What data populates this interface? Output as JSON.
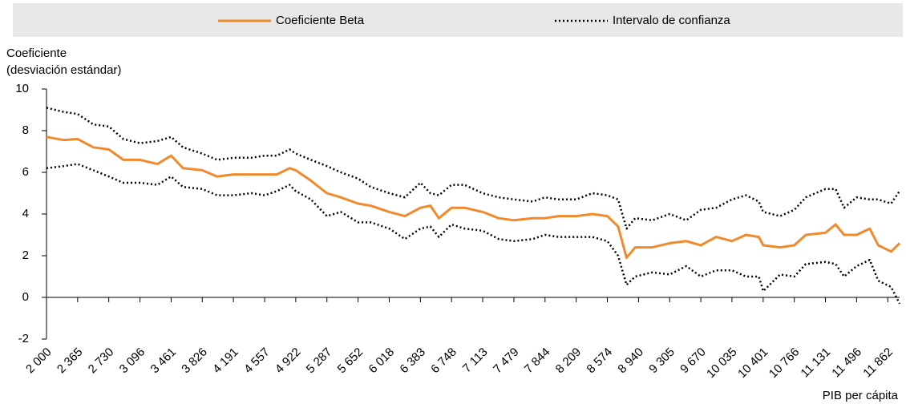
{
  "chart_data": {
    "type": "line",
    "ylabel": [
      "Coeficiente",
      "(desviación estándar)"
    ],
    "xlabel": "PIB per cápita",
    "x": [
      2000,
      2200,
      2365,
      2550,
      2730,
      2900,
      3096,
      3300,
      3461,
      3600,
      3826,
      4000,
      4191,
      4400,
      4557,
      4700,
      4850,
      4922,
      5100,
      5287,
      5450,
      5652,
      5800,
      6018,
      6200,
      6383,
      6500,
      6600,
      6748,
      6900,
      7113,
      7300,
      7479,
      7700,
      7844,
      8000,
      8209,
      8400,
      8574,
      8700,
      8800,
      8900,
      9100,
      9305,
      9500,
      9670,
      9850,
      10035,
      10200,
      10350,
      10401,
      10600,
      10766,
      10900,
      11131,
      11250,
      11350,
      11496,
      11650,
      11750,
      11900,
      12000
    ],
    "series": [
      {
        "name": "Coeficiente Beta",
        "color": "#f08a2c",
        "style": "solid",
        "values": [
          7.7,
          7.55,
          7.6,
          7.2,
          7.1,
          6.6,
          6.6,
          6.4,
          6.8,
          6.2,
          6.1,
          5.8,
          5.9,
          5.9,
          5.9,
          5.9,
          6.2,
          6.1,
          5.6,
          5.0,
          4.8,
          4.5,
          4.4,
          4.1,
          3.9,
          4.3,
          4.4,
          3.8,
          4.3,
          4.3,
          4.1,
          3.8,
          3.7,
          3.8,
          3.8,
          3.9,
          3.9,
          4.0,
          3.9,
          3.4,
          1.9,
          2.4,
          2.4,
          2.6,
          2.7,
          2.5,
          2.9,
          2.7,
          3.0,
          2.9,
          2.5,
          2.4,
          2.5,
          3.0,
          3.1,
          3.5,
          3.0,
          3.0,
          3.3,
          2.5,
          2.2,
          2.6
        ]
      },
      {
        "name": "Intervalo de confianza",
        "color": "#000000",
        "style": "dotted",
        "values": [
          9.1,
          8.9,
          8.8,
          8.3,
          8.2,
          7.6,
          7.4,
          7.5,
          7.7,
          7.2,
          6.9,
          6.6,
          6.7,
          6.7,
          6.8,
          6.8,
          7.1,
          6.9,
          6.6,
          6.3,
          6.0,
          5.7,
          5.3,
          5.0,
          4.8,
          5.5,
          5.0,
          4.9,
          5.4,
          5.4,
          5.0,
          4.8,
          4.7,
          4.6,
          4.8,
          4.7,
          4.7,
          5.0,
          4.9,
          4.7,
          3.3,
          3.8,
          3.7,
          4.0,
          3.7,
          4.2,
          4.3,
          4.7,
          4.9,
          4.6,
          4.1,
          3.9,
          4.2,
          4.8,
          5.2,
          5.2,
          4.3,
          4.8,
          4.7,
          4.7,
          4.5,
          5.1
        ]
      },
      {
        "color": "#000000",
        "style": "dotted",
        "values": [
          6.2,
          6.3,
          6.4,
          6.1,
          5.8,
          5.5,
          5.5,
          5.4,
          5.8,
          5.3,
          5.2,
          4.9,
          4.9,
          5.0,
          4.9,
          5.1,
          5.4,
          5.1,
          4.7,
          3.9,
          4.1,
          3.6,
          3.6,
          3.3,
          2.8,
          3.3,
          3.4,
          2.9,
          3.5,
          3.3,
          3.2,
          2.8,
          2.7,
          2.8,
          3.0,
          2.9,
          2.9,
          2.9,
          2.7,
          2.0,
          0.6,
          1.0,
          1.2,
          1.1,
          1.5,
          1.0,
          1.3,
          1.3,
          1.0,
          1.0,
          0.3,
          1.1,
          1.0,
          1.6,
          1.7,
          1.6,
          1.0,
          1.5,
          1.8,
          0.8,
          0.5,
          -0.3
        ]
      }
    ],
    "xlim": [
      2000,
      12000
    ],
    "xticks": [
      {
        "value": 2000,
        "label": "2 000"
      },
      {
        "value": 2365,
        "label": "2 365"
      },
      {
        "value": 2730,
        "label": "2 730"
      },
      {
        "value": 3096,
        "label": "3 096"
      },
      {
        "value": 3461,
        "label": "3 461"
      },
      {
        "value": 3826,
        "label": "3 826"
      },
      {
        "value": 4191,
        "label": "4 191"
      },
      {
        "value": 4557,
        "label": "4 557"
      },
      {
        "value": 4922,
        "label": "4 922"
      },
      {
        "value": 5287,
        "label": "5 287"
      },
      {
        "value": 5652,
        "label": "5 652"
      },
      {
        "value": 6018,
        "label": "6 018"
      },
      {
        "value": 6383,
        "label": "6 383"
      },
      {
        "value": 6748,
        "label": "6 748"
      },
      {
        "value": 7113,
        "label": "7 113"
      },
      {
        "value": 7479,
        "label": "7 479"
      },
      {
        "value": 7844,
        "label": "7 844"
      },
      {
        "value": 8209,
        "label": "8 209"
      },
      {
        "value": 8574,
        "label": "8 574"
      },
      {
        "value": 8940,
        "label": "8 940"
      },
      {
        "value": 9305,
        "label": "9 305"
      },
      {
        "value": 9670,
        "label": "9 670"
      },
      {
        "value": 10035,
        "label": "10 035"
      },
      {
        "value": 10401,
        "label": "10 401"
      },
      {
        "value": 10766,
        "label": "10 766"
      },
      {
        "value": 11131,
        "label": "11 131"
      },
      {
        "value": 11496,
        "label": "11 496"
      },
      {
        "value": 11862,
        "label": "11 862"
      }
    ],
    "ylim": [
      -2,
      10
    ],
    "yticks": [
      -2,
      0,
      2,
      4,
      6,
      8,
      10
    ],
    "grid": false,
    "legend": "top"
  }
}
